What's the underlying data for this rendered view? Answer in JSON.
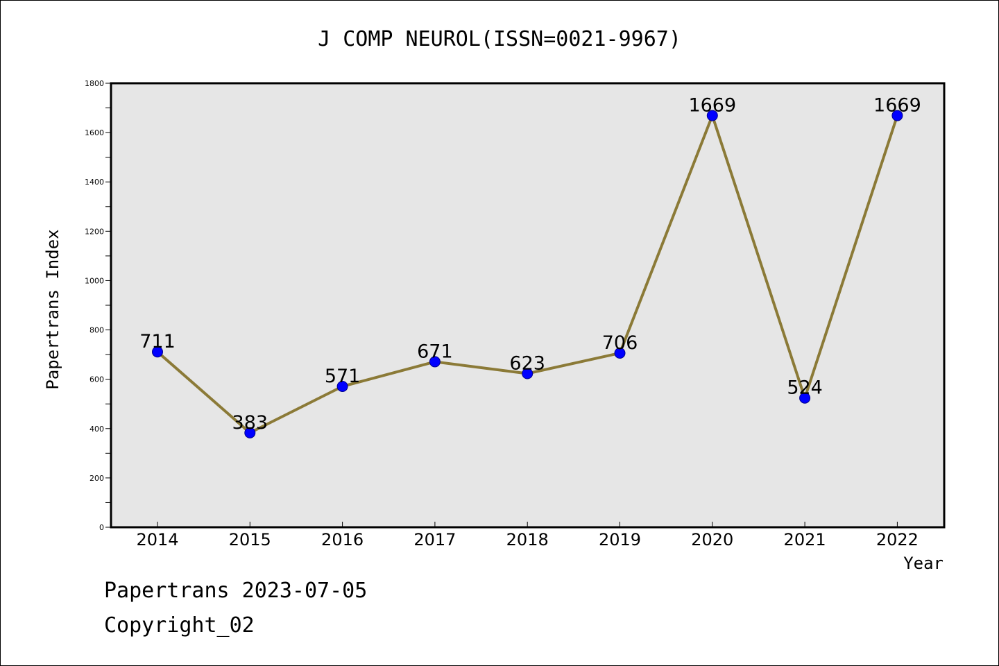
{
  "chart_data": {
    "type": "line",
    "title": "J COMP NEUROL(ISSN=0021-9967)",
    "xlabel": "Year",
    "ylabel": "Papertrans Index",
    "categories": [
      "2014",
      "2015",
      "2016",
      "2017",
      "2018",
      "2019",
      "2020",
      "2021",
      "2022"
    ],
    "series": [
      {
        "values": [
          711,
          383,
          571,
          671,
          623,
          706,
          1669,
          524,
          1669
        ]
      }
    ],
    "ylim": [
      0,
      1800
    ],
    "yticks": [
      0,
      200,
      400,
      600,
      800,
      1000,
      1200,
      1400,
      1600,
      1800
    ],
    "grid": false,
    "line_color": "#8b7a37",
    "marker_color": "#0000ff",
    "plot_background": "#e6e6e6"
  },
  "footer": {
    "line1": "Papertrans 2023-07-05",
    "line2": "Copyright_02"
  }
}
